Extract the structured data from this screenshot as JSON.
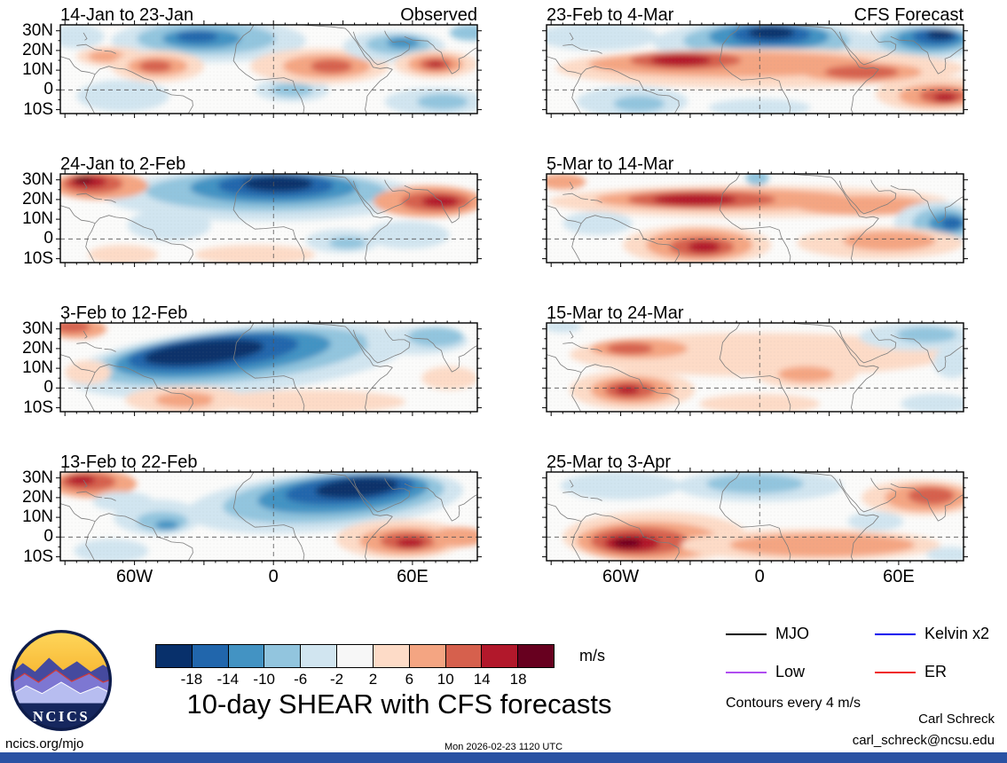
{
  "logo": {
    "text": "NCICS"
  },
  "title": "10-day SHEAR with CFS forecasts",
  "legend": {
    "items": [
      {
        "label": "MJO",
        "color": "#000000"
      },
      {
        "label": "Kelvin x2",
        "color": "#0000ee"
      },
      {
        "label": "Low",
        "color": "#b04df0"
      },
      {
        "label": "ER",
        "color": "#f02020"
      }
    ],
    "note": "Contours every 4 m/s"
  },
  "credits": {
    "name": "Carl Schreck",
    "email": "carl_schreck@ncsu.edu"
  },
  "footer": {
    "site": "ncics.org/mjo",
    "timestamp": "Mon 2026-02-23 1120 UTC",
    "bar_color": "#2a52a3"
  },
  "chart_data": {
    "type": "heatmap",
    "lon_range": [
      -92,
      88
    ],
    "lat_range": [
      -12,
      33
    ],
    "grid": {
      "equator_dashed": true,
      "prime_meridian_dashed": true
    },
    "x_ticks": [
      {
        "lon": -60,
        "label": "60W"
      },
      {
        "lon": 0,
        "label": "0"
      },
      {
        "lon": 60,
        "label": "60E"
      }
    ],
    "y_ticks": [
      {
        "lat": 30,
        "label": "30N"
      },
      {
        "lat": 20,
        "label": "20N"
      },
      {
        "lat": 10,
        "label": "10N"
      },
      {
        "lat": 0,
        "label": "0"
      },
      {
        "lat": -10,
        "label": "10S"
      }
    ],
    "colorbar": {
      "unit": "m/s",
      "ticks": [
        -18,
        -14,
        -10,
        -6,
        -2,
        2,
        6,
        10,
        14,
        18
      ],
      "colors": [
        "#08306b",
        "#2166ac",
        "#4393c3",
        "#92c5de",
        "#d1e5f0",
        "#f7f7f7",
        "#fddbc7",
        "#f4a582",
        "#d6604d",
        "#b2182b",
        "#67001f"
      ]
    },
    "panels": [
      {
        "title": "14-Jan to 23-Jan",
        "badge": "Observed",
        "show_ylabels": true,
        "show_xlabels": false,
        "features": [
          [
            -85,
            27,
            12,
            6,
            -2
          ],
          [
            -28,
            25,
            42,
            11,
            -2
          ],
          [
            -29,
            26,
            30,
            8,
            -6
          ],
          [
            -31,
            26,
            17,
            5,
            -10
          ],
          [
            -33,
            27,
            9,
            3,
            -14
          ],
          [
            -70,
            17,
            15,
            5,
            2
          ],
          [
            -72,
            17,
            8,
            3,
            6
          ],
          [
            -50,
            12,
            20,
            8,
            2
          ],
          [
            -50,
            12,
            13,
            5,
            6
          ],
          [
            -51,
            12,
            7,
            3,
            10
          ],
          [
            -65,
            -3,
            20,
            8,
            -2
          ],
          [
            8,
            0,
            16,
            6,
            -2
          ],
          [
            8,
            0,
            9,
            3.5,
            -6
          ],
          [
            20,
            12,
            30,
            9,
            2
          ],
          [
            23,
            12,
            19,
            6,
            6
          ],
          [
            25,
            12,
            9,
            3.5,
            10
          ],
          [
            52,
            22,
            22,
            8,
            -2
          ],
          [
            54,
            23,
            14,
            5,
            -6
          ],
          [
            56,
            24,
            7,
            3,
            -10
          ],
          [
            70,
            13,
            18,
            7,
            2
          ],
          [
            70,
            13,
            12,
            5,
            6
          ],
          [
            70,
            13,
            7,
            3,
            10
          ],
          [
            70,
            13,
            3.5,
            1.5,
            14
          ],
          [
            70,
            -6,
            22,
            7,
            -2
          ],
          [
            73,
            -6,
            11,
            4,
            -6
          ],
          [
            85,
            29,
            9,
            4,
            -6
          ]
        ]
      },
      {
        "title": "23-Feb to 4-Mar",
        "badge": "CFS Forecast",
        "show_ylabels": false,
        "show_xlabels": false,
        "features": [
          [
            -70,
            27,
            26,
            7,
            -2
          ],
          [
            2,
            24,
            48,
            11,
            -2
          ],
          [
            3,
            25,
            36,
            9,
            -6
          ],
          [
            4,
            27,
            26,
            7,
            -10
          ],
          [
            5,
            28,
            17,
            5,
            -14
          ],
          [
            5,
            29,
            10,
            3.2,
            -18
          ],
          [
            70,
            24,
            28,
            9,
            -2
          ],
          [
            72,
            25,
            21,
            7,
            -6
          ],
          [
            74,
            26,
            15,
            5.5,
            -10
          ],
          [
            76,
            27,
            10,
            4,
            -14
          ],
          [
            78,
            28,
            6,
            2.5,
            -18
          ],
          [
            0,
            11,
            88,
            10,
            2
          ],
          [
            -12,
            13,
            62,
            6.5,
            6
          ],
          [
            -32,
            15,
            24,
            4.5,
            10
          ],
          [
            -34,
            15,
            13,
            3,
            14
          ],
          [
            44,
            9,
            26,
            5,
            6
          ],
          [
            44,
            9,
            16,
            3.5,
            10
          ],
          [
            76,
            -2,
            26,
            9,
            2
          ],
          [
            77,
            -3,
            17,
            6,
            6
          ],
          [
            79,
            -3,
            10,
            4,
            10
          ],
          [
            80,
            -4,
            5,
            2.2,
            14
          ],
          [
            -55,
            -6,
            24,
            8,
            -2
          ],
          [
            -52,
            -7,
            11,
            4,
            -6
          ],
          [
            0,
            -9,
            22,
            4.5,
            -2
          ]
        ]
      },
      {
        "title": "24-Jan to 2-Feb",
        "badge": "",
        "show_ylabels": true,
        "show_xlabels": false,
        "features": [
          [
            -5,
            22,
            68,
            13,
            -2
          ],
          [
            -3,
            24,
            52,
            10,
            -6
          ],
          [
            0,
            26,
            36,
            8,
            -10
          ],
          [
            1,
            27,
            25,
            6,
            -14
          ],
          [
            2,
            28,
            15,
            4,
            -18
          ],
          [
            -75,
            27,
            21,
            7,
            6
          ],
          [
            -78,
            28,
            13,
            5,
            10
          ],
          [
            -80,
            29,
            8,
            3,
            14
          ],
          [
            -82,
            30,
            4,
            1.8,
            18
          ],
          [
            67,
            19,
            24,
            8,
            6
          ],
          [
            70,
            19,
            15,
            5,
            10
          ],
          [
            72,
            19,
            8,
            3,
            14
          ],
          [
            58,
            2,
            18,
            7,
            -2
          ],
          [
            30,
            -1,
            16,
            6,
            -2
          ],
          [
            32,
            -2,
            8,
            3,
            -6
          ],
          [
            -45,
            7,
            18,
            8,
            -2
          ],
          [
            -65,
            -8,
            15,
            5,
            2
          ],
          [
            -8,
            -8,
            26,
            5,
            2
          ]
        ]
      },
      {
        "title": "5-Mar to 14-Mar",
        "badge": "",
        "show_ylabels": false,
        "show_xlabels": false,
        "features": [
          [
            -5,
            19,
            86,
            8,
            2
          ],
          [
            -15,
            20,
            56,
            5.5,
            6
          ],
          [
            -25,
            20,
            32,
            4.5,
            10
          ],
          [
            -28,
            20,
            18,
            3,
            14
          ],
          [
            45,
            17,
            30,
            5,
            6
          ],
          [
            -85,
            29,
            10,
            4,
            6
          ],
          [
            -1,
            31,
            5,
            4,
            -6
          ],
          [
            77,
            8,
            19,
            11,
            -2
          ],
          [
            79,
            8,
            13,
            8,
            -6
          ],
          [
            81,
            8,
            8,
            5,
            -10
          ],
          [
            83,
            8,
            4.5,
            3,
            -14
          ],
          [
            -27,
            -3,
            32,
            10,
            2
          ],
          [
            -26,
            -3,
            23,
            8,
            6
          ],
          [
            -25,
            -4,
            14,
            5,
            10
          ],
          [
            -24,
            -4,
            7,
            3,
            14
          ],
          [
            52,
            -2,
            36,
            8,
            2
          ],
          [
            56,
            -1,
            20,
            5,
            6
          ],
          [
            -70,
            8,
            15,
            6,
            -2
          ]
        ]
      },
      {
        "title": "3-Feb to 12-Feb",
        "badge": "",
        "show_ylabels": true,
        "show_xlabels": false,
        "features": [
          [
            -15,
            14,
            74,
            17,
            -2,
            -6
          ],
          [
            -18,
            16,
            60,
            13,
            -6,
            -6
          ],
          [
            -22,
            17,
            47,
            10.5,
            -10,
            -6
          ],
          [
            -26,
            18,
            37,
            8.5,
            -14,
            -6
          ],
          [
            -30,
            18,
            26,
            6,
            -18,
            -6
          ],
          [
            -85,
            30,
            13,
            5,
            6
          ],
          [
            -87,
            31,
            8,
            3,
            10
          ],
          [
            -80,
            8,
            10,
            6,
            2
          ],
          [
            -38,
            -6,
            26,
            7,
            2
          ],
          [
            -38,
            -6,
            13,
            4,
            6
          ],
          [
            15,
            -7,
            42,
            6,
            2
          ],
          [
            62,
            24,
            22,
            7,
            -2
          ],
          [
            70,
            26,
            12,
            5,
            -6
          ],
          [
            76,
            5,
            12,
            6,
            2
          ]
        ]
      },
      {
        "title": "15-Mar to 24-Mar",
        "badge": "",
        "show_ylabels": false,
        "show_xlabels": false,
        "features": [
          [
            0,
            17,
            82,
            11,
            2
          ],
          [
            -52,
            20,
            21,
            5,
            6
          ],
          [
            -56,
            20,
            10,
            3,
            10
          ],
          [
            20,
            7,
            22,
            7,
            2
          ],
          [
            20,
            7,
            12,
            4,
            6
          ],
          [
            -55,
            -1,
            27,
            10,
            2
          ],
          [
            -55,
            -1,
            18,
            7,
            6
          ],
          [
            -56,
            -1,
            11,
            4.5,
            10
          ],
          [
            -57,
            -1,
            5,
            2.2,
            14
          ],
          [
            0,
            -8,
            26,
            5,
            2
          ],
          [
            68,
            26,
            25,
            7,
            -2
          ],
          [
            72,
            27,
            13,
            4,
            -6
          ],
          [
            83,
            13,
            8,
            8,
            -2
          ],
          [
            76,
            -8,
            15,
            5,
            -2
          ],
          [
            -85,
            31,
            8,
            3,
            -2
          ]
        ]
      },
      {
        "title": "13-Feb to 22-Feb",
        "badge": "",
        "show_ylabels": true,
        "show_xlabels": true,
        "features": [
          [
            -78,
            27,
            19,
            7,
            6
          ],
          [
            -80,
            28,
            12,
            4.5,
            10
          ],
          [
            -83,
            29,
            6,
            2.5,
            14
          ],
          [
            -65,
            18,
            13,
            5,
            -2
          ],
          [
            -50,
            10,
            19,
            9,
            -2
          ],
          [
            -48,
            8,
            11,
            5,
            -6
          ],
          [
            -46,
            6,
            5,
            2.5,
            -10
          ],
          [
            22,
            18,
            60,
            15,
            -2,
            -5
          ],
          [
            26,
            20,
            48,
            12,
            -6,
            -5
          ],
          [
            30,
            22,
            37,
            9.5,
            -10,
            -5
          ],
          [
            33,
            24,
            28,
            7,
            -14,
            -5
          ],
          [
            36,
            25,
            18,
            5,
            -18,
            -5
          ],
          [
            -70,
            -7,
            16,
            6,
            -2
          ],
          [
            55,
            -1,
            28,
            10,
            2
          ],
          [
            57,
            -2,
            20,
            7,
            6
          ],
          [
            58,
            -2,
            12,
            4.5,
            10
          ],
          [
            59,
            -3,
            6,
            2.5,
            14
          ],
          [
            80,
            0,
            12,
            5,
            6
          ]
        ]
      },
      {
        "title": "25-Mar to 3-Apr",
        "badge": "",
        "show_ylabels": false,
        "show_xlabels": true,
        "features": [
          [
            -60,
            26,
            26,
            7,
            -2
          ],
          [
            0,
            26,
            36,
            8,
            -2
          ],
          [
            -2,
            27,
            21,
            5,
            -6
          ],
          [
            -45,
            0,
            40,
            13,
            2
          ],
          [
            -48,
            -2,
            31,
            10,
            6
          ],
          [
            -52,
            -2,
            21,
            7,
            10
          ],
          [
            -55,
            -3,
            12,
            4.5,
            14
          ],
          [
            -57,
            -3,
            6,
            2.2,
            18
          ],
          [
            22,
            -4,
            56,
            8,
            2
          ],
          [
            27,
            -4,
            40,
            6,
            6
          ],
          [
            70,
            20,
            26,
            9,
            2
          ],
          [
            72,
            20,
            18,
            7,
            6
          ],
          [
            74,
            21,
            10,
            4.5,
            10
          ],
          [
            50,
            8,
            12,
            5,
            -2
          ],
          [
            82,
            -9,
            10,
            4,
            -2
          ]
        ]
      }
    ]
  }
}
